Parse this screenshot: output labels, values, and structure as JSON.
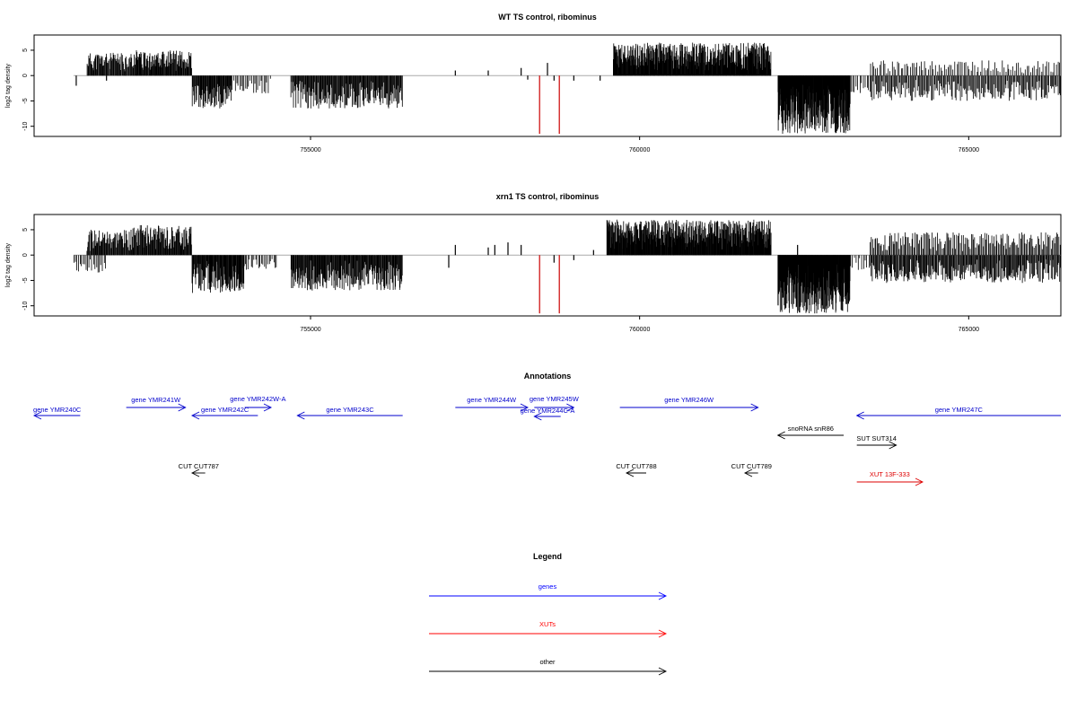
{
  "chart_data": [
    {
      "type": "bar",
      "title": "WT TS control, ribominus",
      "ylabel": "log2 tag density",
      "xlabel": "",
      "xlim": [
        750800,
        766400
      ],
      "ylim": [
        -12,
        8
      ],
      "xticks": [
        {
          "value": 755000,
          "label": "755000"
        },
        {
          "value": 760000,
          "label": "760000"
        },
        {
          "value": 765000,
          "label": "765000"
        }
      ],
      "yticks": [
        {
          "value": 5,
          "label": "5"
        },
        {
          "value": 0,
          "label": "0"
        },
        {
          "value": -5,
          "label": "-5"
        },
        {
          "value": -10,
          "label": "-10"
        }
      ],
      "grid": false,
      "baseline": {
        "from": 751400,
        "to": 766400,
        "color": "#aaaaaa"
      },
      "blocks": [
        {
          "from": 751600,
          "to": 752300,
          "sign": 1,
          "max": 4.5,
          "density": 14,
          "seed": 11
        },
        {
          "from": 752300,
          "to": 753200,
          "sign": 1,
          "max": 5.0,
          "density": 16,
          "seed": 12
        },
        {
          "from": 753200,
          "to": 753800,
          "sign": -1,
          "max": 6.5,
          "density": 16,
          "seed": 13
        },
        {
          "from": 753800,
          "to": 754400,
          "sign": -1,
          "max": 3.5,
          "density": 6,
          "seed": 14
        },
        {
          "from": 754700,
          "to": 756400,
          "sign": -1,
          "max": 6.5,
          "density": 14,
          "seed": 15
        },
        {
          "from": 759600,
          "to": 762000,
          "sign": 1,
          "max": 6.5,
          "density": 22,
          "seed": 16
        },
        {
          "from": 762100,
          "to": 763200,
          "sign": -1,
          "max": 11.5,
          "density": 30,
          "seed": 17
        },
        {
          "from": 763200,
          "to": 763500,
          "sign": -1,
          "max": 3.5,
          "density": 5,
          "seed": 18
        },
        {
          "from": 763500,
          "to": 766400,
          "sign": 1,
          "max": 3.0,
          "density": 5,
          "seed": 19
        },
        {
          "from": 763500,
          "to": 766400,
          "sign": -1,
          "max": 5.0,
          "density": 9,
          "seed": 20
        }
      ],
      "spikes": [
        {
          "x": 751440,
          "y": -2,
          "color": "#000000"
        },
        {
          "x": 751900,
          "y": -1,
          "color": "#000000"
        },
        {
          "x": 757200,
          "y": 1,
          "color": "#000000"
        },
        {
          "x": 757700,
          "y": 1,
          "color": "#000000"
        },
        {
          "x": 758200,
          "y": 1.5,
          "color": "#000000"
        },
        {
          "x": 758300,
          "y": -0.8,
          "color": "#000000"
        },
        {
          "x": 758600,
          "y": 2.5,
          "color": "#000000"
        },
        {
          "x": 758700,
          "y": -1,
          "color": "#000000"
        },
        {
          "x": 759000,
          "y": -1,
          "color": "#000000"
        },
        {
          "x": 759400,
          "y": -1,
          "color": "#000000"
        },
        {
          "x": 758480,
          "y": -11.5,
          "color": "#cc0000"
        },
        {
          "x": 758780,
          "y": -11.5,
          "color": "#cc0000"
        }
      ]
    },
    {
      "type": "bar",
      "title": "xrn1 TS control, ribominus",
      "ylabel": "log2 tag density",
      "xlabel": "",
      "xlim": [
        750800,
        766400
      ],
      "ylim": [
        -12,
        8
      ],
      "xticks": [
        {
          "value": 755000,
          "label": "755000"
        },
        {
          "value": 760000,
          "label": "760000"
        },
        {
          "value": 765000,
          "label": "765000"
        }
      ],
      "yticks": [
        {
          "value": 5,
          "label": "5"
        },
        {
          "value": 0,
          "label": "0"
        },
        {
          "value": -5,
          "label": "-5"
        },
        {
          "value": -10,
          "label": "-10"
        }
      ],
      "grid": false,
      "baseline": {
        "from": 751400,
        "to": 766400,
        "color": "#aaaaaa"
      },
      "blocks": [
        {
          "from": 751400,
          "to": 751900,
          "sign": -1,
          "max": 3.5,
          "density": 6,
          "seed": 31
        },
        {
          "from": 751600,
          "to": 752300,
          "sign": 1,
          "max": 5.0,
          "density": 14,
          "seed": 32
        },
        {
          "from": 752300,
          "to": 753200,
          "sign": 1,
          "max": 6.0,
          "density": 16,
          "seed": 33
        },
        {
          "from": 753200,
          "to": 754000,
          "sign": -1,
          "max": 7.5,
          "density": 18,
          "seed": 34
        },
        {
          "from": 754000,
          "to": 754500,
          "sign": -1,
          "max": 3.0,
          "density": 6,
          "seed": 35
        },
        {
          "from": 754700,
          "to": 756400,
          "sign": -1,
          "max": 7.0,
          "density": 16,
          "seed": 36
        },
        {
          "from": 759500,
          "to": 762000,
          "sign": 1,
          "max": 7.0,
          "density": 24,
          "seed": 37
        },
        {
          "from": 762100,
          "to": 763200,
          "sign": -1,
          "max": 11.5,
          "density": 32,
          "seed": 38
        },
        {
          "from": 763200,
          "to": 763500,
          "sign": -1,
          "max": 3.0,
          "density": 5,
          "seed": 39
        },
        {
          "from": 763500,
          "to": 766400,
          "sign": 1,
          "max": 4.5,
          "density": 8,
          "seed": 40
        },
        {
          "from": 763500,
          "to": 766400,
          "sign": -1,
          "max": 5.5,
          "density": 12,
          "seed": 41
        }
      ],
      "spikes": [
        {
          "x": 757100,
          "y": -2.5,
          "color": "#000000"
        },
        {
          "x": 757200,
          "y": 2,
          "color": "#000000"
        },
        {
          "x": 757700,
          "y": 1.5,
          "color": "#000000"
        },
        {
          "x": 757800,
          "y": 2,
          "color": "#000000"
        },
        {
          "x": 758000,
          "y": 2.5,
          "color": "#000000"
        },
        {
          "x": 758200,
          "y": 2,
          "color": "#000000"
        },
        {
          "x": 758700,
          "y": -1.5,
          "color": "#000000"
        },
        {
          "x": 759000,
          "y": -1,
          "color": "#000000"
        },
        {
          "x": 759300,
          "y": 1,
          "color": "#000000"
        },
        {
          "x": 762400,
          "y": 2,
          "color": "#000000"
        },
        {
          "x": 758480,
          "y": -11.5,
          "color": "#cc0000"
        },
        {
          "x": 758780,
          "y": -11.5,
          "color": "#cc0000"
        }
      ]
    }
  ],
  "annotations": {
    "title": "Annotations",
    "xlim": [
      750800,
      766400
    ],
    "colors": {
      "gene": "#0000cc",
      "xut": "#dd0000",
      "other": "#000000"
    },
    "features": [
      {
        "label": "gene YMR240C",
        "kind": "gene",
        "from": 751500,
        "to": 750800,
        "row": 2
      },
      {
        "label": "gene YMR241W",
        "kind": "gene",
        "from": 752200,
        "to": 753100,
        "row": 1
      },
      {
        "label": "gene YMR242C",
        "kind": "gene",
        "from": 754200,
        "to": 753200,
        "row": 2
      },
      {
        "label": "gene YMR242W-A",
        "kind": "gene",
        "from": 754000,
        "to": 754400,
        "row": 0
      },
      {
        "label": "gene YMR243C",
        "kind": "gene",
        "from": 756400,
        "to": 754800,
        "row": 2
      },
      {
        "label": "gene YMR244W",
        "kind": "gene",
        "from": 757200,
        "to": 758300,
        "row": 1
      },
      {
        "label": "gene YMR245W",
        "kind": "gene",
        "from": 758400,
        "to": 759000,
        "row": 0
      },
      {
        "label": "gene YMR244C-A",
        "kind": "gene",
        "from": 758800,
        "to": 758400,
        "row": 1.6
      },
      {
        "label": "gene YMR246W",
        "kind": "gene",
        "from": 759700,
        "to": 761800,
        "row": 1
      },
      {
        "label": "gene YMR247C",
        "kind": "gene",
        "from": 766400,
        "to": 763300,
        "row": 2
      },
      {
        "label": "snoRNA snR86",
        "kind": "other",
        "from": 763100,
        "to": 762100,
        "row": 3
      },
      {
        "label": "SUT SUT314",
        "kind": "other",
        "from": 763300,
        "to": 763900,
        "row": 4
      },
      {
        "label": "CUT CUT787",
        "kind": "other",
        "from": 753400,
        "to": 753200,
        "row": 5
      },
      {
        "label": "CUT CUT788",
        "kind": "other",
        "from": 760100,
        "to": 759800,
        "row": 5
      },
      {
        "label": "CUT CUT789",
        "kind": "other",
        "from": 761800,
        "to": 761600,
        "row": 5
      },
      {
        "label": "XUT 13F-333",
        "kind": "xut",
        "from": 763300,
        "to": 764300,
        "row": 6
      }
    ]
  },
  "legend": {
    "title": "Legend",
    "items": [
      {
        "label": "genes",
        "color": "#0000ff"
      },
      {
        "label": "XUTs",
        "color": "#ff0000"
      },
      {
        "label": "other",
        "color": "#000000"
      }
    ]
  }
}
